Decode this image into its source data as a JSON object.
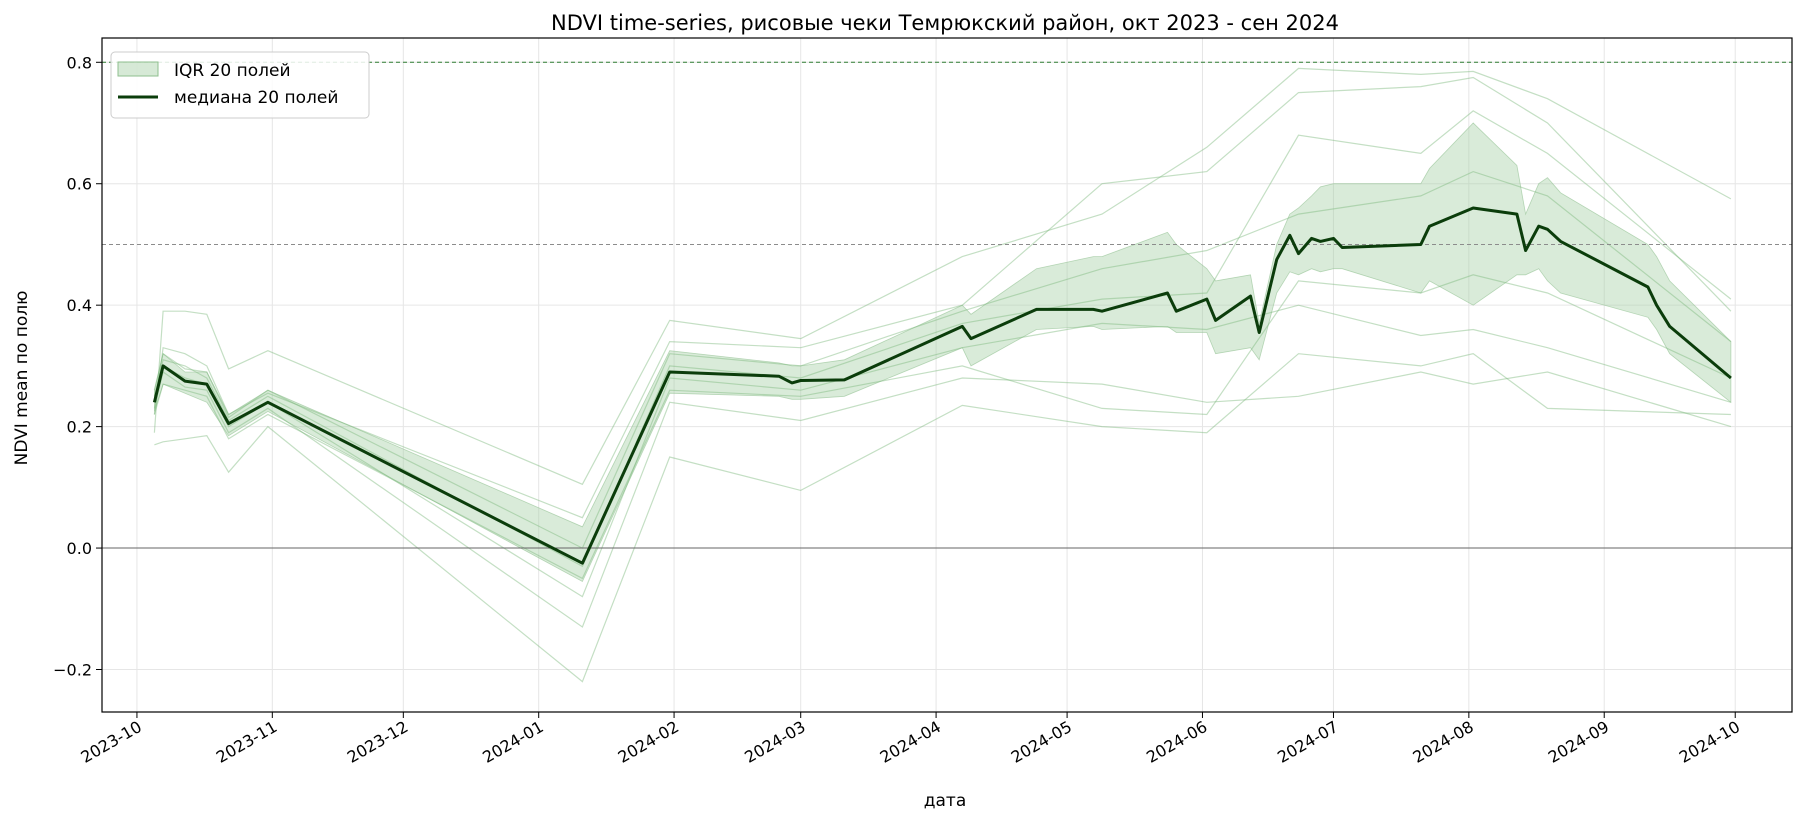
{
  "chart_data": {
    "type": "line",
    "title": "NDVI time-series, рисовые чеки Темрюкский район, окт 2023 - сен 2024",
    "xlabel": "дата",
    "ylabel": "NDVI mean по полю",
    "xlim": [
      "2023-09-23",
      "2024-10-14"
    ],
    "ylim": [
      -0.27,
      0.84
    ],
    "x_ticks": [
      "2023-10",
      "2023-11",
      "2023-12",
      "2024-01",
      "2024-02",
      "2024-03",
      "2024-04",
      "2024-05",
      "2024-06",
      "2024-07",
      "2024-08",
      "2024-09",
      "2024-10"
    ],
    "y_ticks": [
      "−0.2",
      "0.0",
      "0.2",
      "0.4",
      "0.6",
      "0.8"
    ],
    "y_tick_values": [
      -0.2,
      0.0,
      0.2,
      0.4,
      0.6,
      0.8
    ],
    "grid": true,
    "legend_position": "top-left",
    "reference_lines": [
      {
        "y": 0.8,
        "style": "dashed",
        "color": "#2e7d32"
      },
      {
        "y": 0.5,
        "style": "dashed",
        "color": "#8c8c8c"
      },
      {
        "y": 0.0,
        "style": "solid",
        "color": "#666666"
      }
    ],
    "colors": {
      "median": "#0b3d0b",
      "iqr_fill": "#a5cfa5",
      "field_lines": "#7cb87c"
    },
    "series": [
      {
        "name": "медиана 20 полей",
        "role": "median",
        "x": [
          "2023-10-05",
          "2023-10-07",
          "2023-10-12",
          "2023-10-17",
          "2023-10-22",
          "2023-10-31",
          "2024-01-11",
          "2024-01-31",
          "2024-02-25",
          "2024-02-28",
          "2024-03-01",
          "2024-03-11",
          "2024-04-07",
          "2024-04-09",
          "2024-04-24",
          "2024-05-07",
          "2024-05-09",
          "2024-05-24",
          "2024-05-26",
          "2024-06-02",
          "2024-06-04",
          "2024-06-12",
          "2024-06-14",
          "2024-06-18",
          "2024-06-21",
          "2024-06-23",
          "2024-06-26",
          "2024-06-28",
          "2024-07-01",
          "2024-07-03",
          "2024-07-21",
          "2024-07-23",
          "2024-08-02",
          "2024-08-12",
          "2024-08-14",
          "2024-08-17",
          "2024-08-19",
          "2024-08-22",
          "2024-09-11",
          "2024-09-13",
          "2024-09-16",
          "2024-09-30"
        ],
        "values": [
          0.24,
          0.3,
          0.275,
          0.27,
          0.205,
          0.24,
          -0.025,
          0.29,
          0.283,
          0.272,
          0.276,
          0.277,
          0.365,
          0.345,
          0.393,
          0.393,
          0.39,
          0.42,
          0.39,
          0.41,
          0.375,
          0.415,
          0.355,
          0.475,
          0.515,
          0.485,
          0.51,
          0.505,
          0.51,
          0.495,
          0.5,
          0.53,
          0.56,
          0.55,
          0.49,
          0.53,
          0.525,
          0.505,
          0.43,
          0.4,
          0.365,
          0.28
        ]
      },
      {
        "name": "IQR 20 полей",
        "role": "iqr",
        "x": [
          "2023-10-05",
          "2023-10-07",
          "2023-10-12",
          "2023-10-17",
          "2023-10-22",
          "2023-10-31",
          "2024-01-11",
          "2024-01-31",
          "2024-02-25",
          "2024-02-28",
          "2024-03-01",
          "2024-03-11",
          "2024-04-07",
          "2024-04-09",
          "2024-04-24",
          "2024-05-07",
          "2024-05-09",
          "2024-05-24",
          "2024-05-26",
          "2024-06-02",
          "2024-06-04",
          "2024-06-12",
          "2024-06-14",
          "2024-06-18",
          "2024-06-21",
          "2024-06-23",
          "2024-06-26",
          "2024-06-28",
          "2024-07-01",
          "2024-07-03",
          "2024-07-21",
          "2024-07-23",
          "2024-08-02",
          "2024-08-12",
          "2024-08-14",
          "2024-08-17",
          "2024-08-19",
          "2024-08-22",
          "2024-09-11",
          "2024-09-13",
          "2024-09-16",
          "2024-09-30"
        ],
        "low": [
          0.225,
          0.27,
          0.255,
          0.24,
          0.185,
          0.225,
          -0.055,
          0.255,
          0.25,
          0.245,
          0.245,
          0.25,
          0.33,
          0.3,
          0.36,
          0.365,
          0.36,
          0.365,
          0.355,
          0.355,
          0.32,
          0.33,
          0.31,
          0.42,
          0.455,
          0.45,
          0.46,
          0.455,
          0.46,
          0.46,
          0.42,
          0.44,
          0.4,
          0.45,
          0.45,
          0.46,
          0.44,
          0.42,
          0.38,
          0.36,
          0.32,
          0.24
        ],
        "high": [
          0.26,
          0.32,
          0.29,
          0.29,
          0.22,
          0.26,
          0.035,
          0.325,
          0.305,
          0.3,
          0.3,
          0.31,
          0.4,
          0.385,
          0.46,
          0.48,
          0.48,
          0.52,
          0.5,
          0.46,
          0.44,
          0.45,
          0.37,
          0.5,
          0.55,
          0.56,
          0.58,
          0.595,
          0.6,
          0.6,
          0.6,
          0.625,
          0.7,
          0.63,
          0.55,
          0.6,
          0.61,
          0.585,
          0.5,
          0.48,
          0.44,
          0.34
        ]
      }
    ],
    "field_lines": [
      {
        "x": [
          "2023-10-05",
          "2023-10-07",
          "2023-10-12",
          "2023-10-17",
          "2023-10-22",
          "2023-10-31",
          "2024-01-11",
          "2024-01-31",
          "2024-03-01",
          "2024-04-07",
          "2024-05-09",
          "2024-06-02",
          "2024-06-23",
          "2024-07-21",
          "2024-08-02",
          "2024-08-19",
          "2024-09-30"
        ],
        "values": [
          0.19,
          0.39,
          0.39,
          0.385,
          0.295,
          0.325,
          0.105,
          0.375,
          0.345,
          0.48,
          0.55,
          0.66,
          0.79,
          0.78,
          0.785,
          0.74,
          0.575
        ]
      },
      {
        "x": [
          "2023-10-05",
          "2023-10-07",
          "2023-10-12",
          "2023-10-17",
          "2023-10-22",
          "2023-10-31",
          "2024-01-11",
          "2024-01-31",
          "2024-03-01",
          "2024-04-07",
          "2024-05-09",
          "2024-06-02",
          "2024-06-23",
          "2024-07-21",
          "2024-08-02",
          "2024-08-19",
          "2024-09-30"
        ],
        "values": [
          0.17,
          0.175,
          0.18,
          0.185,
          0.125,
          0.2,
          -0.22,
          0.15,
          0.095,
          0.235,
          0.2,
          0.19,
          0.32,
          0.3,
          0.32,
          0.23,
          0.22
        ]
      },
      {
        "x": [
          "2023-10-05",
          "2023-10-07",
          "2023-10-12",
          "2023-10-17",
          "2023-10-22",
          "2023-10-31",
          "2024-01-11",
          "2024-01-31",
          "2024-03-01",
          "2024-04-07",
          "2024-05-09",
          "2024-06-02",
          "2024-06-23",
          "2024-07-21",
          "2024-08-02",
          "2024-08-19",
          "2024-09-30"
        ],
        "values": [
          0.22,
          0.33,
          0.32,
          0.3,
          0.22,
          0.255,
          0.05,
          0.34,
          0.33,
          0.4,
          0.6,
          0.62,
          0.75,
          0.76,
          0.775,
          0.7,
          0.39
        ]
      },
      {
        "x": [
          "2023-10-05",
          "2023-10-07",
          "2023-10-12",
          "2023-10-17",
          "2023-10-22",
          "2023-10-31",
          "2024-01-11",
          "2024-01-31",
          "2024-03-01",
          "2024-04-07",
          "2024-05-09",
          "2024-06-02",
          "2024-06-23",
          "2024-07-21",
          "2024-08-02",
          "2024-08-19",
          "2024-09-30"
        ],
        "values": [
          0.23,
          0.29,
          0.265,
          0.26,
          0.19,
          0.23,
          -0.13,
          0.24,
          0.21,
          0.28,
          0.27,
          0.24,
          0.25,
          0.29,
          0.27,
          0.29,
          0.2
        ]
      },
      {
        "x": [
          "2023-10-05",
          "2023-10-07",
          "2023-10-12",
          "2023-10-17",
          "2023-10-22",
          "2023-10-31",
          "2024-01-11",
          "2024-01-31",
          "2024-03-01",
          "2024-04-07",
          "2024-05-09",
          "2024-06-02",
          "2024-06-23",
          "2024-07-21",
          "2024-08-02",
          "2024-08-19",
          "2024-09-30"
        ],
        "values": [
          0.25,
          0.31,
          0.3,
          0.28,
          0.21,
          0.25,
          -0.03,
          0.3,
          0.28,
          0.37,
          0.41,
          0.42,
          0.68,
          0.65,
          0.72,
          0.65,
          0.41
        ]
      },
      {
        "x": [
          "2023-10-05",
          "2023-10-07",
          "2023-10-12",
          "2023-10-17",
          "2023-10-22",
          "2023-10-31",
          "2024-01-11",
          "2024-01-31",
          "2024-03-01",
          "2024-04-07",
          "2024-05-09",
          "2024-06-02",
          "2024-06-23",
          "2024-07-21",
          "2024-08-02",
          "2024-08-19",
          "2024-09-30"
        ],
        "values": [
          0.24,
          0.3,
          0.28,
          0.27,
          0.2,
          0.24,
          -0.08,
          0.28,
          0.26,
          0.33,
          0.37,
          0.36,
          0.4,
          0.35,
          0.36,
          0.33,
          0.24
        ]
      },
      {
        "x": [
          "2023-10-05",
          "2023-10-07",
          "2023-10-12",
          "2023-10-17",
          "2023-10-22",
          "2023-10-31",
          "2024-01-11",
          "2024-01-31",
          "2024-03-01",
          "2024-04-07",
          "2024-05-09",
          "2024-06-02",
          "2024-06-23",
          "2024-07-21",
          "2024-08-02",
          "2024-08-19",
          "2024-09-30"
        ],
        "values": [
          0.26,
          0.32,
          0.295,
          0.29,
          0.215,
          0.26,
          0.0,
          0.32,
          0.3,
          0.39,
          0.46,
          0.49,
          0.55,
          0.58,
          0.62,
          0.58,
          0.34
        ]
      },
      {
        "x": [
          "2023-10-05",
          "2023-10-07",
          "2023-10-12",
          "2023-10-17",
          "2023-10-22",
          "2023-10-31",
          "2024-01-11",
          "2024-01-31",
          "2024-03-01",
          "2024-04-07",
          "2024-05-09",
          "2024-06-02",
          "2024-06-23",
          "2024-07-21",
          "2024-08-02",
          "2024-08-19",
          "2024-09-30"
        ],
        "values": [
          0.22,
          0.27,
          0.26,
          0.25,
          0.18,
          0.22,
          -0.05,
          0.26,
          0.25,
          0.3,
          0.23,
          0.22,
          0.44,
          0.42,
          0.45,
          0.42,
          0.28
        ]
      }
    ],
    "legend": [
      "IQR 20 полей",
      "медиана 20 полей"
    ]
  }
}
